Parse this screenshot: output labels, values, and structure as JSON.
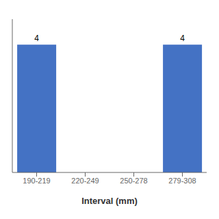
{
  "chart_data": {
    "type": "bar",
    "categories": [
      "190-219",
      "220-249",
      "250-278",
      "279-308"
    ],
    "values": [
      4,
      0,
      0,
      4
    ],
    "color": "#4472C4",
    "xlabel": "Interval (mm)",
    "ylim": [
      0,
      4.8
    ],
    "yticks": [],
    "data_labels": true,
    "tick_labels": "x",
    "grid": false
  }
}
